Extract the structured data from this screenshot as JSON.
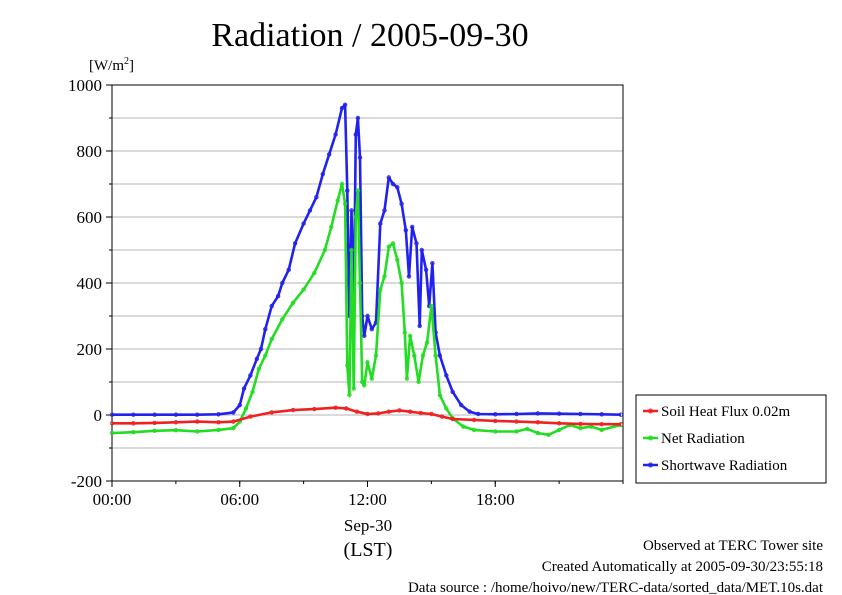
{
  "chart_data": {
    "type": "line",
    "title": "Radiation / 2005-09-30",
    "ylabel_unit": "[W/m",
    "ylabel_sup": "2",
    "ylabel_close": "]",
    "ylim": [
      -200,
      1000
    ],
    "xlim": [
      0,
      24
    ],
    "yticks": [
      -200,
      0,
      200,
      400,
      600,
      800,
      1000
    ],
    "ytick_labels": [
      "-200",
      "0",
      "200",
      "400",
      "600",
      "800",
      "1000"
    ],
    "xticks": [
      0,
      6,
      12,
      18
    ],
    "xtick_labels": [
      "00:00",
      "06:00",
      "12:00",
      "18:00"
    ],
    "xlabel_date": "Sep-30",
    "xlabel_tz": "(LST)",
    "grid": true,
    "legend_position": "right",
    "series": [
      {
        "name": "Shortwave Radiation",
        "color": "#2222ee",
        "points": [
          [
            0,
            1
          ],
          [
            1,
            1
          ],
          [
            2,
            1
          ],
          [
            3,
            1
          ],
          [
            4,
            1
          ],
          [
            5,
            2
          ],
          [
            5.7,
            8
          ],
          [
            6,
            30
          ],
          [
            6.2,
            80
          ],
          [
            6.5,
            120
          ],
          [
            6.8,
            170
          ],
          [
            7,
            200
          ],
          [
            7.2,
            260
          ],
          [
            7.5,
            330
          ],
          [
            7.8,
            360
          ],
          [
            8,
            400
          ],
          [
            8.3,
            440
          ],
          [
            8.6,
            520
          ],
          [
            9,
            580
          ],
          [
            9.3,
            620
          ],
          [
            9.6,
            660
          ],
          [
            9.9,
            730
          ],
          [
            10.2,
            790
          ],
          [
            10.5,
            850
          ],
          [
            10.8,
            930
          ],
          [
            10.95,
            940
          ],
          [
            11.05,
            680
          ],
          [
            11.15,
            300
          ],
          [
            11.25,
            620
          ],
          [
            11.35,
            300
          ],
          [
            11.45,
            850
          ],
          [
            11.55,
            900
          ],
          [
            11.65,
            780
          ],
          [
            11.75,
            300
          ],
          [
            11.85,
            240
          ],
          [
            12,
            300
          ],
          [
            12.2,
            260
          ],
          [
            12.4,
            280
          ],
          [
            12.6,
            580
          ],
          [
            12.8,
            620
          ],
          [
            13,
            720
          ],
          [
            13.2,
            700
          ],
          [
            13.4,
            690
          ],
          [
            13.6,
            640
          ],
          [
            13.8,
            560
          ],
          [
            13.95,
            420
          ],
          [
            14.1,
            570
          ],
          [
            14.3,
            520
          ],
          [
            14.45,
            270
          ],
          [
            14.55,
            500
          ],
          [
            14.75,
            440
          ],
          [
            14.9,
            330
          ],
          [
            15.05,
            460
          ],
          [
            15.2,
            250
          ],
          [
            15.4,
            180
          ],
          [
            15.7,
            120
          ],
          [
            16,
            70
          ],
          [
            16.4,
            30
          ],
          [
            16.8,
            10
          ],
          [
            17.2,
            3
          ],
          [
            18,
            2
          ],
          [
            19,
            3
          ],
          [
            20,
            5
          ],
          [
            21,
            4
          ],
          [
            22,
            3
          ],
          [
            23,
            2
          ],
          [
            23.9,
            1
          ]
        ]
      },
      {
        "name": "Net Radiation",
        "color": "#22dd22",
        "points": [
          [
            0,
            -55
          ],
          [
            1,
            -52
          ],
          [
            2,
            -48
          ],
          [
            3,
            -46
          ],
          [
            4,
            -50
          ],
          [
            5,
            -45
          ],
          [
            5.7,
            -40
          ],
          [
            6,
            -20
          ],
          [
            6.3,
            20
          ],
          [
            6.6,
            70
          ],
          [
            6.9,
            140
          ],
          [
            7.2,
            180
          ],
          [
            7.5,
            230
          ],
          [
            8,
            290
          ],
          [
            8.5,
            340
          ],
          [
            9,
            380
          ],
          [
            9.5,
            430
          ],
          [
            10,
            500
          ],
          [
            10.3,
            570
          ],
          [
            10.6,
            650
          ],
          [
            10.8,
            700
          ],
          [
            10.95,
            640
          ],
          [
            11.05,
            150
          ],
          [
            11.15,
            60
          ],
          [
            11.25,
            500
          ],
          [
            11.35,
            80
          ],
          [
            11.45,
            600
          ],
          [
            11.55,
            680
          ],
          [
            11.65,
            400
          ],
          [
            11.75,
            100
          ],
          [
            11.85,
            90
          ],
          [
            12,
            160
          ],
          [
            12.2,
            110
          ],
          [
            12.4,
            180
          ],
          [
            12.6,
            380
          ],
          [
            12.8,
            420
          ],
          [
            13,
            510
          ],
          [
            13.2,
            520
          ],
          [
            13.4,
            470
          ],
          [
            13.6,
            400
          ],
          [
            13.75,
            250
          ],
          [
            13.85,
            110
          ],
          [
            14,
            240
          ],
          [
            14.2,
            180
          ],
          [
            14.4,
            100
          ],
          [
            14.6,
            180
          ],
          [
            14.8,
            220
          ],
          [
            15,
            330
          ],
          [
            15.2,
            180
          ],
          [
            15.4,
            60
          ],
          [
            15.7,
            20
          ],
          [
            16,
            -10
          ],
          [
            16.5,
            -35
          ],
          [
            17,
            -45
          ],
          [
            18,
            -50
          ],
          [
            19,
            -50
          ],
          [
            19.5,
            -42
          ],
          [
            20,
            -55
          ],
          [
            20.5,
            -60
          ],
          [
            21,
            -45
          ],
          [
            21.5,
            -30
          ],
          [
            22,
            -40
          ],
          [
            22.5,
            -35
          ],
          [
            23,
            -45
          ],
          [
            23.9,
            -30
          ]
        ]
      },
      {
        "name": "Soil Heat Flux 0.02m",
        "color": "#ee2222",
        "points": [
          [
            0,
            -25
          ],
          [
            1,
            -25
          ],
          [
            2,
            -24
          ],
          [
            3,
            -22
          ],
          [
            4,
            -20
          ],
          [
            5,
            -22
          ],
          [
            5.7,
            -20
          ],
          [
            6.5,
            -5
          ],
          [
            7.5,
            8
          ],
          [
            8.5,
            15
          ],
          [
            9.5,
            18
          ],
          [
            10.5,
            22
          ],
          [
            11,
            20
          ],
          [
            11.5,
            10
          ],
          [
            12,
            3
          ],
          [
            12.5,
            5
          ],
          [
            13,
            10
          ],
          [
            13.5,
            14
          ],
          [
            14,
            10
          ],
          [
            14.5,
            6
          ],
          [
            15,
            3
          ],
          [
            15.5,
            -5
          ],
          [
            16,
            -12
          ],
          [
            17,
            -15
          ],
          [
            18,
            -18
          ],
          [
            19,
            -20
          ],
          [
            20,
            -22
          ],
          [
            21,
            -25
          ],
          [
            22,
            -27
          ],
          [
            23,
            -28
          ],
          [
            23.9,
            -28
          ]
        ]
      }
    ],
    "footer": [
      "Observed at TERC Tower site",
      "Created Automatically at 2005-09-30/23:55:18",
      "Data source : /home/hoivo/new/TERC-data/sorted_data/MET.10s.dat"
    ]
  }
}
